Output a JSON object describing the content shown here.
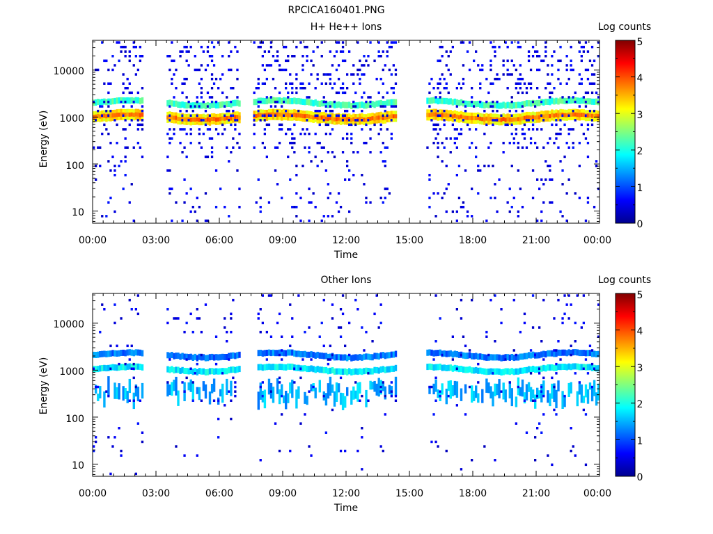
{
  "figure_title": "RPCICA160401.PNG",
  "colorbar": {
    "label": "Log counts",
    "ticks": [
      "0",
      "1",
      "2",
      "3",
      "4",
      "5"
    ]
  },
  "chart_data": [
    {
      "type": "heatmap",
      "title": "H+ He++ Ions",
      "xlabel": "Time",
      "ylabel": "Energy (eV)",
      "x_range_hours": [
        0,
        24
      ],
      "y_scale": "log",
      "y_range_eV": [
        5.5,
        43000
      ],
      "x_tick_labels": [
        "00:00",
        "03:00",
        "06:00",
        "09:00",
        "12:00",
        "15:00",
        "18:00",
        "21:00",
        "00:00"
      ],
      "y_tick_labels": [
        "10",
        "100",
        "1000",
        "10000"
      ],
      "colorscale": "jet",
      "color_range_log_counts": [
        0,
        5
      ],
      "data_gaps_hours": [
        [
          2.35,
          3.5
        ],
        [
          7.0,
          7.55
        ],
        [
          14.4,
          15.75
        ]
      ],
      "bands": [
        {
          "energy_eV": 1000,
          "log_counts": 3.2
        },
        {
          "energy_eV": 2000,
          "log_counts": 2.2
        }
      ]
    },
    {
      "type": "heatmap",
      "title": "Other Ions",
      "xlabel": "Time",
      "ylabel": "Energy (eV)",
      "x_range_hours": [
        0,
        24
      ],
      "y_scale": "log",
      "y_range_eV": [
        5.5,
        43000
      ],
      "x_tick_labels": [
        "00:00",
        "03:00",
        "06:00",
        "09:00",
        "12:00",
        "15:00",
        "18:00",
        "21:00",
        "00:00"
      ],
      "y_tick_labels": [
        "10",
        "100",
        "1000",
        "10000"
      ],
      "colorscale": "jet",
      "color_range_log_counts": [
        0,
        5
      ],
      "data_gaps_hours": [
        [
          2.35,
          3.5
        ],
        [
          7.0,
          7.8
        ],
        [
          14.4,
          15.75
        ]
      ],
      "bands": [
        {
          "energy_eV": 2100,
          "log_counts": 1.2
        },
        {
          "energy_eV": 1050,
          "log_counts": 1.8
        },
        {
          "energy_eV": 300,
          "log_counts": 1.5
        }
      ]
    }
  ]
}
